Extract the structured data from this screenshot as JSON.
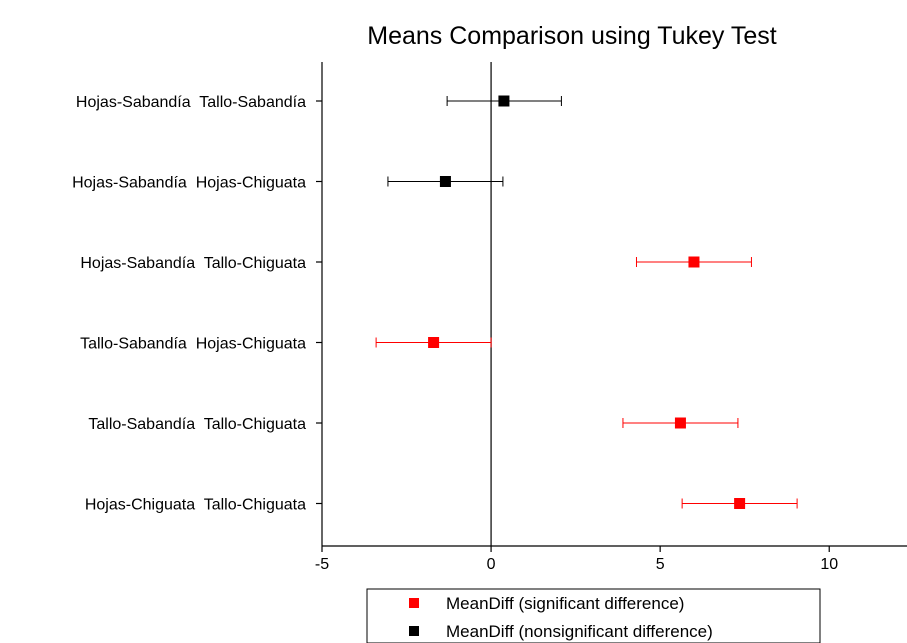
{
  "chart_data": {
    "type": "scatter",
    "title": "Means Comparison using Tukey Test",
    "xlabel": "",
    "ylabel": "",
    "xlim": [
      -5,
      12.3
    ],
    "x_ticks": [
      -5,
      0,
      5,
      10
    ],
    "x_tick_labels": [
      "-5",
      "0",
      "5",
      "10"
    ],
    "zero_line": 0,
    "categories": [
      "Hojas-Sabandía  Tallo-Sabandía",
      "Hojas-Sabandía  Hojas-Chiguata",
      "Hojas-Sabandía  Tallo-Chiguata",
      "Tallo-Sabandía  Hojas-Chiguata",
      "Tallo-Sabandía  Tallo-Chiguata",
      "Hojas-Chiguata  Tallo-Chiguata"
    ],
    "series": [
      {
        "name": "MeanDiff (significant difference)",
        "color": "#ff0000",
        "points": [
          {
            "category": "Hojas-Sabandía  Tallo-Chiguata",
            "mean": 6.0,
            "lower": 4.3,
            "upper": 7.7
          },
          {
            "category": "Tallo-Sabandía  Hojas-Chiguata",
            "mean": -1.7,
            "lower": -3.4,
            "upper": 0.0
          },
          {
            "category": "Tallo-Sabandía  Tallo-Chiguata",
            "mean": 5.6,
            "lower": 3.9,
            "upper": 7.3
          },
          {
            "category": "Hojas-Chiguata  Tallo-Chiguata",
            "mean": 7.35,
            "lower": 5.65,
            "upper": 9.05
          }
        ]
      },
      {
        "name": "MeanDiff (nonsignificant difference)",
        "color": "#000000",
        "points": [
          {
            "category": "Hojas-Sabandía  Tallo-Sabandía",
            "mean": 0.38,
            "lower": -1.3,
            "upper": 2.08
          },
          {
            "category": "Hojas-Sabandía  Hojas-Chiguata",
            "mean": -1.35,
            "lower": -3.05,
            "upper": 0.35
          }
        ]
      }
    ],
    "legend_position": "bottom"
  }
}
